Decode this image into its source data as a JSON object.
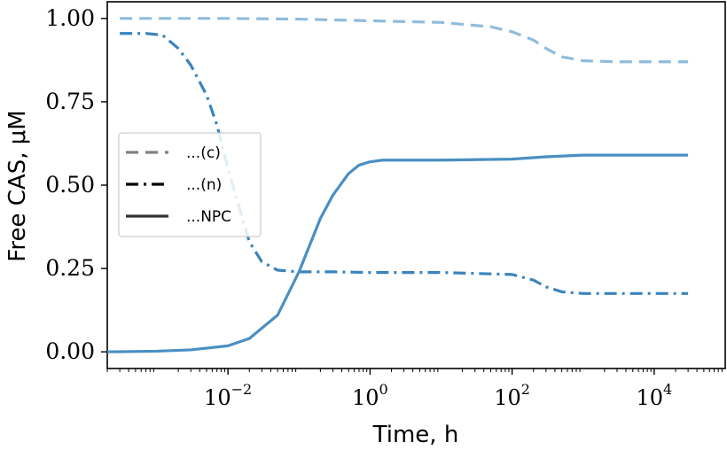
{
  "chart_data": {
    "type": "line",
    "xscale": "log",
    "xlim": [
      0.0002,
      100000
    ],
    "ylim": [
      -0.05,
      1.05
    ],
    "xlabel": "Time, h",
    "ylabel": "Free CAS, μM",
    "ytick_values": [
      0.0,
      0.25,
      0.5,
      0.75,
      1.0
    ],
    "ytick_labels": [
      "0.00",
      "0.25",
      "0.50",
      "0.75",
      "1.00"
    ],
    "xtick_values": [
      0.01,
      1,
      100,
      10000
    ],
    "xtick_labels": [
      {
        "base": "10",
        "exp": "−2"
      },
      {
        "base": "10",
        "exp": "0"
      },
      {
        "base": "10",
        "exp": "2"
      },
      {
        "base": "10",
        "exp": "4"
      }
    ],
    "grid": false,
    "legend_placement": "center-left",
    "series": [
      {
        "name": "...(c)",
        "style": "dashed",
        "color": "#90bcdb",
        "legend_color": "#808080",
        "x": [
          0.0003,
          0.001,
          0.01,
          0.1,
          1,
          10,
          50,
          100,
          200,
          300,
          500,
          1000,
          3000,
          30000
        ],
        "y": [
          1.0,
          1.0,
          1.0,
          0.998,
          0.993,
          0.988,
          0.975,
          0.96,
          0.935,
          0.91,
          0.885,
          0.873,
          0.87,
          0.87
        ]
      },
      {
        "name": "...(n)",
        "style": "dashdot",
        "color": "#3a84bd",
        "legend_color": "#000000",
        "x": [
          0.0003,
          0.0007,
          0.0012,
          0.002,
          0.003,
          0.005,
          0.007,
          0.01,
          0.015,
          0.02,
          0.03,
          0.05,
          0.1,
          0.3,
          1,
          10,
          100,
          200,
          300,
          500,
          1000,
          3000,
          30000
        ],
        "y": [
          0.955,
          0.955,
          0.95,
          0.91,
          0.86,
          0.77,
          0.68,
          0.55,
          0.42,
          0.33,
          0.27,
          0.245,
          0.24,
          0.24,
          0.238,
          0.238,
          0.232,
          0.215,
          0.195,
          0.18,
          0.175,
          0.175,
          0.175
        ]
      },
      {
        "name": "...NPC",
        "style": "solid",
        "color": "#4a8fc3",
        "legend_color": "#333333",
        "x": [
          0.0002,
          0.001,
          0.003,
          0.01,
          0.02,
          0.05,
          0.1,
          0.2,
          0.3,
          0.5,
          0.7,
          1,
          1.5,
          2,
          10,
          100,
          300,
          1000,
          30000
        ],
        "y": [
          0.0,
          0.002,
          0.006,
          0.018,
          0.04,
          0.11,
          0.24,
          0.4,
          0.47,
          0.535,
          0.56,
          0.57,
          0.575,
          0.575,
          0.575,
          0.578,
          0.585,
          0.59,
          0.59
        ]
      }
    ]
  }
}
